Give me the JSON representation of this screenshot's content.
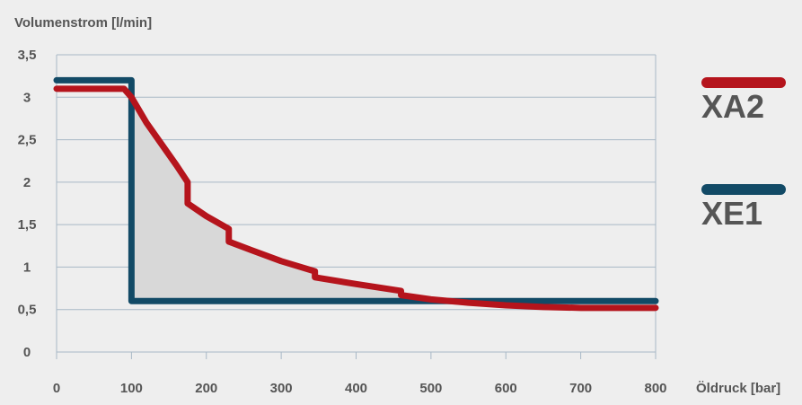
{
  "chart_data": {
    "type": "line",
    "ylabel": "Volumenstrom [l/min]",
    "xlabel": "Öldruck [bar]",
    "xlim": [
      0,
      800
    ],
    "ylim": [
      0,
      3.5
    ],
    "x_ticks": [
      0,
      100,
      200,
      300,
      400,
      500,
      600,
      700,
      800
    ],
    "x_tick_labels": [
      "0",
      "100",
      "200",
      "300",
      "400",
      "500",
      "600",
      "700",
      "800"
    ],
    "y_ticks": [
      0,
      0.5,
      1,
      1.5,
      2,
      2.5,
      3,
      3.5
    ],
    "y_tick_labels": [
      "0",
      "0,5",
      "1",
      "1,5",
      "2",
      "2,5",
      "3",
      "3,5"
    ],
    "grid": "horizontal",
    "legend_position": "right",
    "shaded_region": "between series",
    "series": [
      {
        "name": "XE1",
        "color": "#124a66",
        "points": [
          [
            0,
            3.2
          ],
          [
            100,
            3.2
          ],
          [
            100,
            0.6
          ],
          [
            800,
            0.6
          ]
        ]
      },
      {
        "name": "XA2",
        "color": "#b5141c",
        "points": [
          [
            0,
            3.1
          ],
          [
            90,
            3.1
          ],
          [
            100,
            3.0
          ],
          [
            120,
            2.7
          ],
          [
            140,
            2.45
          ],
          [
            160,
            2.2
          ],
          [
            175,
            2.0
          ],
          [
            175,
            1.75
          ],
          [
            200,
            1.6
          ],
          [
            230,
            1.45
          ],
          [
            230,
            1.3
          ],
          [
            260,
            1.2
          ],
          [
            300,
            1.07
          ],
          [
            345,
            0.95
          ],
          [
            345,
            0.88
          ],
          [
            400,
            0.8
          ],
          [
            460,
            0.72
          ],
          [
            460,
            0.67
          ],
          [
            500,
            0.62
          ],
          [
            550,
            0.58
          ],
          [
            600,
            0.55
          ],
          [
            650,
            0.53
          ],
          [
            700,
            0.52
          ],
          [
            800,
            0.52
          ]
        ]
      }
    ]
  }
}
